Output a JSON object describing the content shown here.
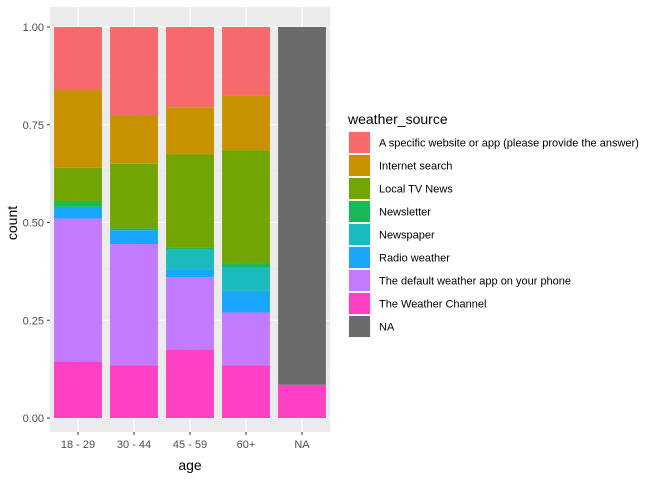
{
  "chart_data": {
    "type": "bar",
    "stacked": true,
    "position": "fill",
    "xlabel": "age",
    "ylabel": "count",
    "ylim": [
      0,
      1
    ],
    "yticks": [
      0.0,
      0.25,
      0.5,
      0.75,
      1.0
    ],
    "ytick_labels": [
      "0.00",
      "0.25",
      "0.50",
      "0.75",
      "1.00"
    ],
    "categories": [
      "18 - 29",
      "30 - 44",
      "45 - 59",
      "60+",
      "NA"
    ],
    "legend_title": "weather_source",
    "legend_position": "right",
    "grid": true,
    "series": [
      {
        "name": "The Weather Channel",
        "color": "#FF40C4",
        "values": [
          0.145,
          0.135,
          0.175,
          0.135,
          0.085
        ]
      },
      {
        "name": "The default weather app on your phone",
        "color": "#C27BFF",
        "values": [
          0.365,
          0.31,
          0.185,
          0.135,
          0.0
        ]
      },
      {
        "name": "Radio weather",
        "color": "#18A6FF",
        "values": [
          0.03,
          0.035,
          0.02,
          0.055,
          0.0
        ]
      },
      {
        "name": "Newspaper",
        "color": "#1ABABE",
        "values": [
          0.0,
          0.0,
          0.05,
          0.06,
          0.0
        ]
      },
      {
        "name": "Newsletter",
        "color": "#19B95B",
        "values": [
          0.015,
          0.005,
          0.005,
          0.01,
          0.0
        ]
      },
      {
        "name": "Local TV News",
        "color": "#73A502",
        "values": [
          0.085,
          0.165,
          0.24,
          0.29,
          0.0
        ]
      },
      {
        "name": "Internet search",
        "color": "#C89100",
        "values": [
          0.2,
          0.125,
          0.12,
          0.14,
          0.0
        ]
      },
      {
        "name": "A specific website or app (please provide the answer)",
        "color": "#F8696B",
        "values": [
          0.16,
          0.225,
          0.205,
          0.175,
          0.0
        ]
      },
      {
        "name": "NA",
        "color": "#6B6B6B",
        "values": [
          0.0,
          0.0,
          0.0,
          0.0,
          0.915
        ]
      }
    ],
    "legend_order": [
      "A specific website or app (please provide the answer)",
      "Internet search",
      "Local TV News",
      "Newsletter",
      "Newspaper",
      "Radio weather",
      "The default weather app on your phone",
      "The Weather Channel",
      "NA"
    ]
  }
}
